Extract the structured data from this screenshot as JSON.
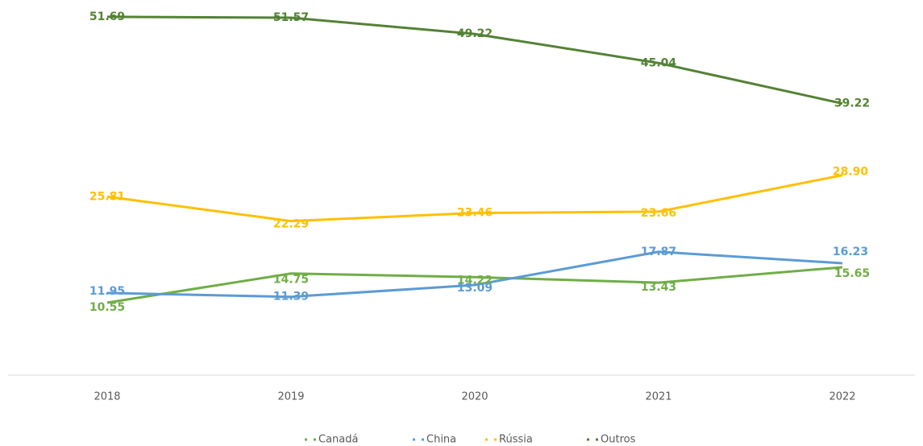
{
  "chart_data": {
    "type": "line",
    "categories": [
      "2018",
      "2019",
      "2020",
      "2021",
      "2022"
    ],
    "series": [
      {
        "name": "Canadá",
        "color": "#70ad47",
        "values": [
          10.55,
          14.75,
          14.22,
          13.43,
          15.65
        ]
      },
      {
        "name": "China",
        "color": "#5b9bd5",
        "values": [
          11.95,
          11.39,
          13.09,
          17.87,
          16.23
        ]
      },
      {
        "name": "Rússia",
        "color": "#ffc000",
        "values": [
          25.81,
          22.29,
          23.46,
          23.66,
          28.9
        ],
        "value_labels": [
          "25.81",
          "22.29",
          "23.46",
          "23.66",
          "28.90"
        ]
      },
      {
        "name": "Outros",
        "color": "#548235",
        "values": [
          51.69,
          51.57,
          49.22,
          45.04,
          39.22
        ]
      }
    ],
    "ylim": [
      0,
      54
    ]
  }
}
